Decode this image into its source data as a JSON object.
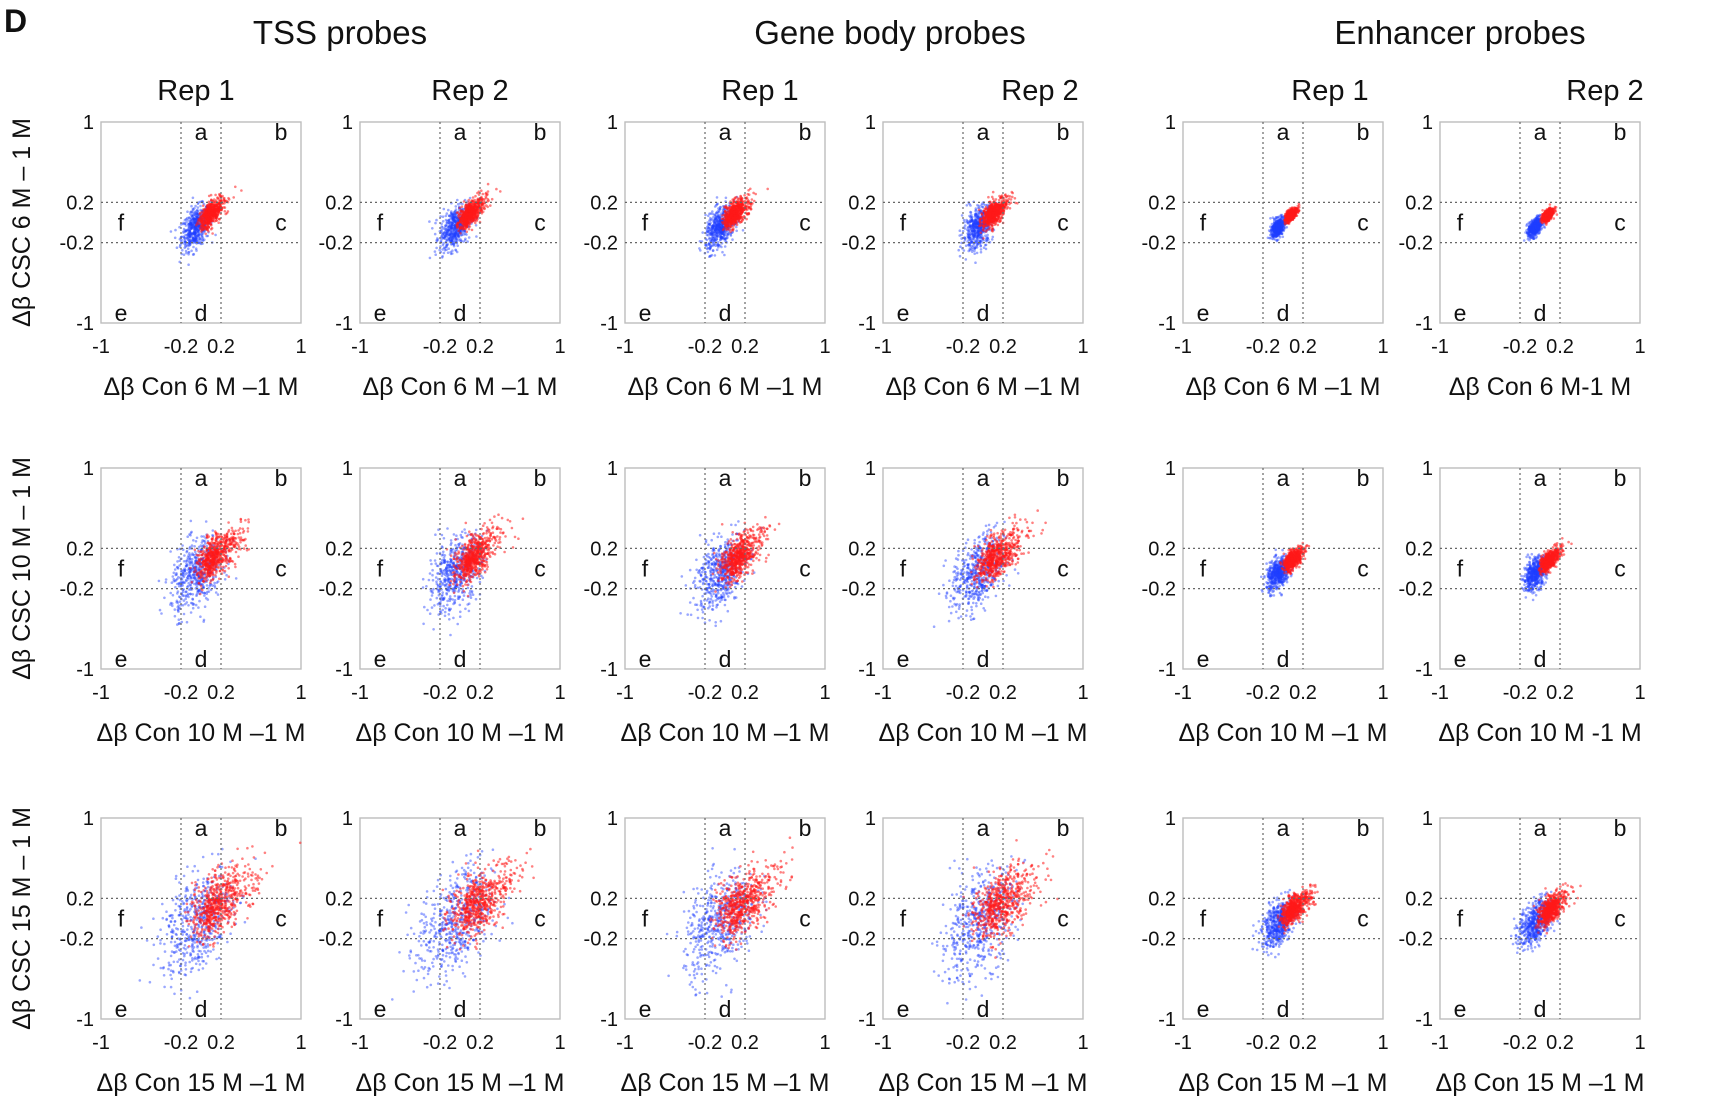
{
  "panel_letter": "D",
  "group_titles": [
    "TSS probes",
    "Gene body probes",
    "Enhancer probes"
  ],
  "rep_titles": [
    "Rep 1",
    "Rep 2",
    "Rep 1",
    "Rep 2",
    "Rep 1",
    "Rep 2"
  ],
  "row_labels": [
    "Δβ CSC 6 M – 1 M",
    "Δβ CSC 10 M – 1 M",
    "Δβ CSC 15 M – 1 M"
  ],
  "x_labels": [
    [
      "Δβ Con 6 M –1 M",
      "Δβ Con 6 M –1 M",
      "Δβ Con 6 M –1 M",
      "Δβ Con 6 M –1 M",
      "Δβ Con 6 M –1 M",
      "Δβ Con 6 M-1 M"
    ],
    [
      "Δβ Con 10 M –1 M",
      "Δβ Con 10 M –1 M",
      "Δβ Con 10 M –1 M",
      "Δβ Con 10 M –1 M",
      "Δβ Con 10 M –1 M",
      "Δβ Con 10 M -1 M"
    ],
    [
      "Δβ Con 15 M –1 M",
      "Δβ Con 15 M –1 M",
      "Δβ Con 15 M –1 M",
      "Δβ Con 15 M –1 M",
      "Δβ Con 15 M –1 M",
      "Δβ Con 15 M –1 M"
    ]
  ],
  "x_ticks": [
    "-1",
    "-0.2",
    "0.2",
    "1"
  ],
  "y_ticks": [
    "1",
    "0.2",
    "-0.2",
    "-1"
  ],
  "region_labels": [
    "a",
    "b",
    "c",
    "d",
    "e",
    "f"
  ],
  "colors": {
    "series_1": "#1f3fff",
    "series_2": "#ff1a1a",
    "frame": "#bdbdbd",
    "threshold": "#666666"
  },
  "chart_data": {
    "type": "scatter",
    "layout": "3 rows (time point) x 6 columns (probe set x replicate)",
    "xlim": [
      -1,
      1
    ],
    "ylim": [
      -1,
      1
    ],
    "thresholds": [
      -0.2,
      0.2
    ],
    "xticks": [
      -1,
      -0.2,
      0.2,
      1
    ],
    "yticks": [
      -1,
      -0.2,
      0.2,
      1
    ],
    "grid": false,
    "legend": "none",
    "series_colors": [
      "blue",
      "red"
    ],
    "regions": {
      "a": "x in [-0.2,0.2], y > 0.2",
      "b": "x > 0.2, y > 0.2",
      "c": "x > 0.2, y in [-0.2,0.2]",
      "d": "x in [-0.2,0.2], y < -0.2",
      "e": "x < -0.2, y < -0.2",
      "f": "x < -0.2, y in [-0.2,0.2]"
    },
    "cloud_spread_by_row": [
      0.08,
      0.14,
      0.2
    ],
    "cloud_spread_by_column": [
      1.0,
      1.05,
      1.0,
      1.05,
      0.45,
      0.45
    ]
  }
}
